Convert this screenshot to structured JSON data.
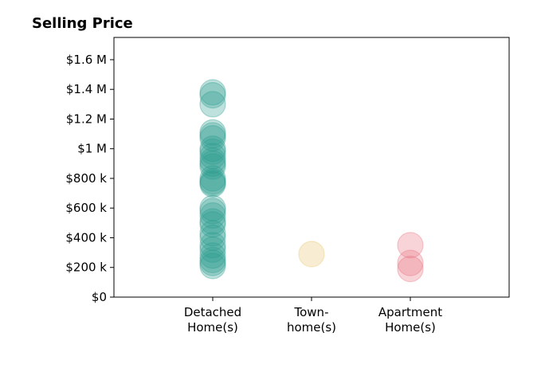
{
  "chart_data": {
    "type": "scatter",
    "title": "Selling Price",
    "xlabel": "",
    "ylabel": "",
    "ylim": [
      0,
      1750000
    ],
    "xlim": [
      -1,
      3
    ],
    "y_ticks": [
      {
        "value": 0,
        "label": "$0"
      },
      {
        "value": 200000,
        "label": "$200 k"
      },
      {
        "value": 400000,
        "label": "$400 k"
      },
      {
        "value": 600000,
        "label": "$600 k"
      },
      {
        "value": 800000,
        "label": "$800 k"
      },
      {
        "value": 1000000,
        "label": "$1 M"
      },
      {
        "value": 1200000,
        "label": "$1.2 M"
      },
      {
        "value": 1400000,
        "label": "$1.4 M"
      },
      {
        "value": 1600000,
        "label": "$1.6 M"
      }
    ],
    "categories": [
      {
        "lines": [
          "Detached",
          "Home(s)"
        ]
      },
      {
        "lines": [
          "Town-",
          "home(s)"
        ]
      },
      {
        "lines": [
          "Apartment",
          "Home(s)"
        ]
      }
    ],
    "grid": false,
    "legend": "none",
    "series": [
      {
        "category_index": 0,
        "color": "#2a9d8f",
        "values": [
          1380000,
          1360000,
          1300000,
          1110000,
          1090000,
          1070000,
          1000000,
          980000,
          950000,
          920000,
          900000,
          880000,
          800000,
          780000,
          770000,
          760000,
          600000,
          580000,
          550000,
          510000,
          490000,
          430000,
          400000,
          350000,
          320000,
          280000,
          250000,
          230000,
          210000
        ]
      },
      {
        "category_index": 1,
        "color": "#e9c46a",
        "values": [
          290000
        ]
      },
      {
        "category_index": 2,
        "color": "#e76f7f",
        "values": [
          350000,
          230000,
          190000
        ]
      }
    ]
  }
}
